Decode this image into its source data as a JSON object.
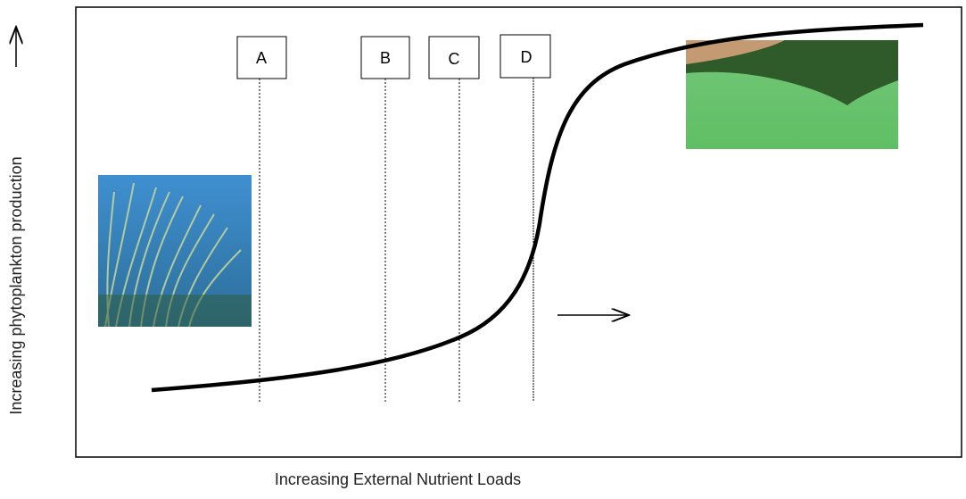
{
  "y_axis_label": "Increasing phytoplankton production",
  "x_axis_label": "Increasing External Nutrient Loads",
  "markers": [
    "A",
    "B",
    "C",
    "D"
  ]
}
